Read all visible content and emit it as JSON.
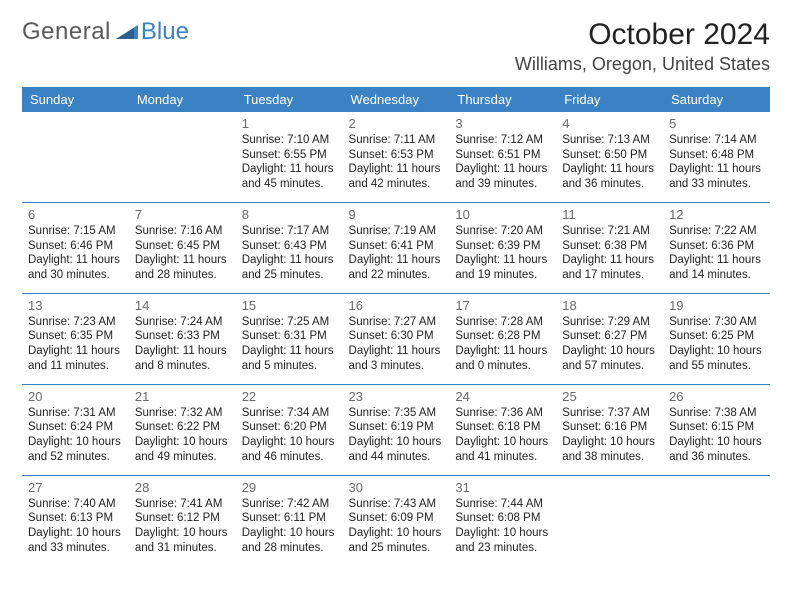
{
  "logo": {
    "word1": "General",
    "word2": "Blue"
  },
  "title": "October 2024",
  "location": "Williams, Oregon, United States",
  "headers": [
    "Sunday",
    "Monday",
    "Tuesday",
    "Wednesday",
    "Thursday",
    "Friday",
    "Saturday"
  ],
  "colors": {
    "header_bg": "#3b82c4",
    "header_text": "#ffffff",
    "row_divider": "#3b82c4",
    "logo_gray": "#5a5a5a",
    "logo_blue": "#3b82c4"
  },
  "weeks": [
    [
      null,
      null,
      {
        "n": "1",
        "sr": "Sunrise: 7:10 AM",
        "ss": "Sunset: 6:55 PM",
        "d1": "Daylight: 11 hours",
        "d2": "and 45 minutes."
      },
      {
        "n": "2",
        "sr": "Sunrise: 7:11 AM",
        "ss": "Sunset: 6:53 PM",
        "d1": "Daylight: 11 hours",
        "d2": "and 42 minutes."
      },
      {
        "n": "3",
        "sr": "Sunrise: 7:12 AM",
        "ss": "Sunset: 6:51 PM",
        "d1": "Daylight: 11 hours",
        "d2": "and 39 minutes."
      },
      {
        "n": "4",
        "sr": "Sunrise: 7:13 AM",
        "ss": "Sunset: 6:50 PM",
        "d1": "Daylight: 11 hours",
        "d2": "and 36 minutes."
      },
      {
        "n": "5",
        "sr": "Sunrise: 7:14 AM",
        "ss": "Sunset: 6:48 PM",
        "d1": "Daylight: 11 hours",
        "d2": "and 33 minutes."
      }
    ],
    [
      {
        "n": "6",
        "sr": "Sunrise: 7:15 AM",
        "ss": "Sunset: 6:46 PM",
        "d1": "Daylight: 11 hours",
        "d2": "and 30 minutes."
      },
      {
        "n": "7",
        "sr": "Sunrise: 7:16 AM",
        "ss": "Sunset: 6:45 PM",
        "d1": "Daylight: 11 hours",
        "d2": "and 28 minutes."
      },
      {
        "n": "8",
        "sr": "Sunrise: 7:17 AM",
        "ss": "Sunset: 6:43 PM",
        "d1": "Daylight: 11 hours",
        "d2": "and 25 minutes."
      },
      {
        "n": "9",
        "sr": "Sunrise: 7:19 AM",
        "ss": "Sunset: 6:41 PM",
        "d1": "Daylight: 11 hours",
        "d2": "and 22 minutes."
      },
      {
        "n": "10",
        "sr": "Sunrise: 7:20 AM",
        "ss": "Sunset: 6:39 PM",
        "d1": "Daylight: 11 hours",
        "d2": "and 19 minutes."
      },
      {
        "n": "11",
        "sr": "Sunrise: 7:21 AM",
        "ss": "Sunset: 6:38 PM",
        "d1": "Daylight: 11 hours",
        "d2": "and 17 minutes."
      },
      {
        "n": "12",
        "sr": "Sunrise: 7:22 AM",
        "ss": "Sunset: 6:36 PM",
        "d1": "Daylight: 11 hours",
        "d2": "and 14 minutes."
      }
    ],
    [
      {
        "n": "13",
        "sr": "Sunrise: 7:23 AM",
        "ss": "Sunset: 6:35 PM",
        "d1": "Daylight: 11 hours",
        "d2": "and 11 minutes."
      },
      {
        "n": "14",
        "sr": "Sunrise: 7:24 AM",
        "ss": "Sunset: 6:33 PM",
        "d1": "Daylight: 11 hours",
        "d2": "and 8 minutes."
      },
      {
        "n": "15",
        "sr": "Sunrise: 7:25 AM",
        "ss": "Sunset: 6:31 PM",
        "d1": "Daylight: 11 hours",
        "d2": "and 5 minutes."
      },
      {
        "n": "16",
        "sr": "Sunrise: 7:27 AM",
        "ss": "Sunset: 6:30 PM",
        "d1": "Daylight: 11 hours",
        "d2": "and 3 minutes."
      },
      {
        "n": "17",
        "sr": "Sunrise: 7:28 AM",
        "ss": "Sunset: 6:28 PM",
        "d1": "Daylight: 11 hours",
        "d2": "and 0 minutes."
      },
      {
        "n": "18",
        "sr": "Sunrise: 7:29 AM",
        "ss": "Sunset: 6:27 PM",
        "d1": "Daylight: 10 hours",
        "d2": "and 57 minutes."
      },
      {
        "n": "19",
        "sr": "Sunrise: 7:30 AM",
        "ss": "Sunset: 6:25 PM",
        "d1": "Daylight: 10 hours",
        "d2": "and 55 minutes."
      }
    ],
    [
      {
        "n": "20",
        "sr": "Sunrise: 7:31 AM",
        "ss": "Sunset: 6:24 PM",
        "d1": "Daylight: 10 hours",
        "d2": "and 52 minutes."
      },
      {
        "n": "21",
        "sr": "Sunrise: 7:32 AM",
        "ss": "Sunset: 6:22 PM",
        "d1": "Daylight: 10 hours",
        "d2": "and 49 minutes."
      },
      {
        "n": "22",
        "sr": "Sunrise: 7:34 AM",
        "ss": "Sunset: 6:20 PM",
        "d1": "Daylight: 10 hours",
        "d2": "and 46 minutes."
      },
      {
        "n": "23",
        "sr": "Sunrise: 7:35 AM",
        "ss": "Sunset: 6:19 PM",
        "d1": "Daylight: 10 hours",
        "d2": "and 44 minutes."
      },
      {
        "n": "24",
        "sr": "Sunrise: 7:36 AM",
        "ss": "Sunset: 6:18 PM",
        "d1": "Daylight: 10 hours",
        "d2": "and 41 minutes."
      },
      {
        "n": "25",
        "sr": "Sunrise: 7:37 AM",
        "ss": "Sunset: 6:16 PM",
        "d1": "Daylight: 10 hours",
        "d2": "and 38 minutes."
      },
      {
        "n": "26",
        "sr": "Sunrise: 7:38 AM",
        "ss": "Sunset: 6:15 PM",
        "d1": "Daylight: 10 hours",
        "d2": "and 36 minutes."
      }
    ],
    [
      {
        "n": "27",
        "sr": "Sunrise: 7:40 AM",
        "ss": "Sunset: 6:13 PM",
        "d1": "Daylight: 10 hours",
        "d2": "and 33 minutes."
      },
      {
        "n": "28",
        "sr": "Sunrise: 7:41 AM",
        "ss": "Sunset: 6:12 PM",
        "d1": "Daylight: 10 hours",
        "d2": "and 31 minutes."
      },
      {
        "n": "29",
        "sr": "Sunrise: 7:42 AM",
        "ss": "Sunset: 6:11 PM",
        "d1": "Daylight: 10 hours",
        "d2": "and 28 minutes."
      },
      {
        "n": "30",
        "sr": "Sunrise: 7:43 AM",
        "ss": "Sunset: 6:09 PM",
        "d1": "Daylight: 10 hours",
        "d2": "and 25 minutes."
      },
      {
        "n": "31",
        "sr": "Sunrise: 7:44 AM",
        "ss": "Sunset: 6:08 PM",
        "d1": "Daylight: 10 hours",
        "d2": "and 23 minutes."
      },
      null,
      null
    ]
  ]
}
